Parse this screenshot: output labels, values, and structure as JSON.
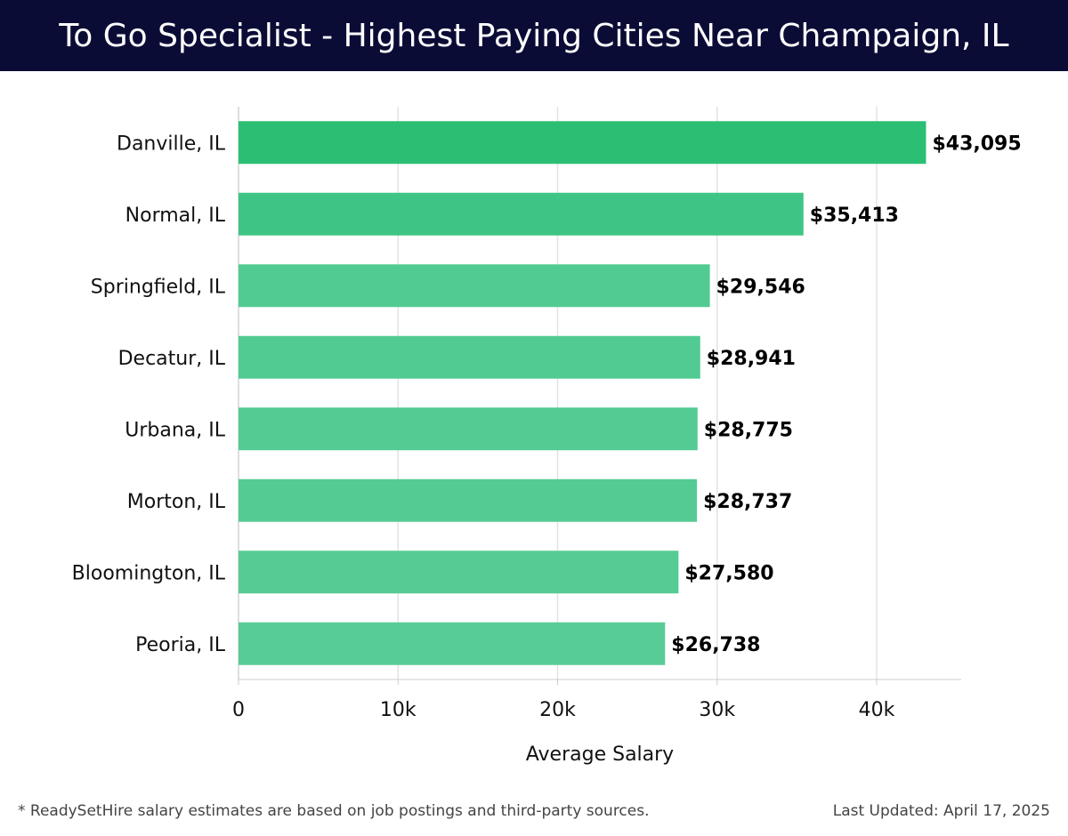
{
  "header": {
    "title": "To Go Specialist - Highest Paying Cities Near Champaign, IL"
  },
  "chart_data": {
    "type": "bar",
    "orientation": "horizontal",
    "categories": [
      "Danville, IL",
      "Normal, IL",
      "Springfield, IL",
      "Decatur, IL",
      "Urbana, IL",
      "Morton, IL",
      "Bloomington, IL",
      "Peoria, IL"
    ],
    "values": [
      43095,
      35413,
      29546,
      28941,
      28775,
      28737,
      27580,
      26738
    ],
    "data_labels": [
      "$43,095",
      "$35,413",
      "$29,546",
      "$28,941",
      "$28,775",
      "$28,737",
      "$27,580",
      "$26,738"
    ],
    "colors": [
      "#2bbf74",
      "#3ec585",
      "#52cb92",
      "#52cb92",
      "#53cb93",
      "#54cb93",
      "#56cb94",
      "#57cc96"
    ],
    "xlabel": "Average Salary",
    "ylabel": "",
    "xlim": [
      0,
      45300
    ],
    "xticks": [
      0,
      10000,
      20000,
      30000,
      40000
    ],
    "xtick_labels": [
      "0",
      "10k",
      "20k",
      "30k",
      "40k"
    ],
    "grid": true
  },
  "footer": {
    "note": "* ReadySetHire salary estimates are based on job postings and third-party sources.",
    "updated": "Last Updated: April 17, 2025"
  }
}
